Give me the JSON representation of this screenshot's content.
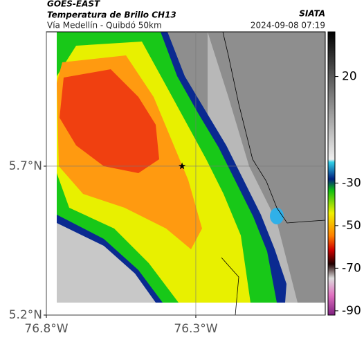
{
  "header": {
    "title": "GOES-EAST",
    "subtitle": "Temperatura de Brillo CH13",
    "source": "SIATA",
    "location": "Vía Medellín - Quibdó 50km",
    "timestamp": "2024-09-08 07:19"
  },
  "map": {
    "xlim": [
      -76.8,
      -75.867
    ],
    "ylim": [
      5.2,
      6.151
    ],
    "xticks": [
      {
        "value": -76.8,
        "label": "76.8°W"
      },
      {
        "value": -76.3,
        "label": "76.3°W"
      }
    ],
    "yticks": [
      {
        "value": 5.2,
        "label": "5.2°N"
      },
      {
        "value": 5.7,
        "label": "5.7°N"
      }
    ],
    "grid": true,
    "marker": {
      "lon": -76.346,
      "lat": 5.7
    }
  },
  "colorbar": {
    "clim": [
      -92,
      41
    ],
    "ticks": [
      20,
      -30,
      -50,
      -70,
      -90
    ]
  }
}
